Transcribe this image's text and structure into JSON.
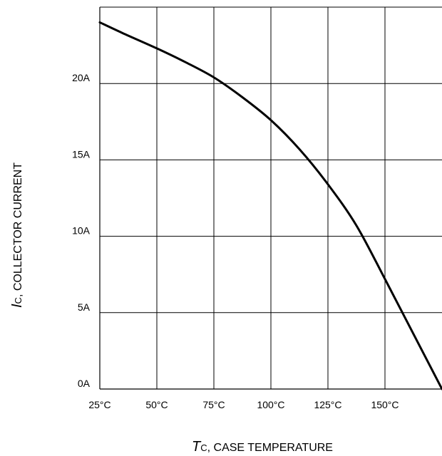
{
  "chart_data": {
    "type": "line",
    "title": "",
    "xlabel": {
      "symbol": "T",
      "subscript": "C",
      "text": ", CASE TEMPERATURE"
    },
    "ylabel": {
      "symbol": "I",
      "subscript": "C",
      "text": ", COLLECTOR CURRENT"
    },
    "xlim": [
      25,
      175
    ],
    "ylim": [
      0,
      25
    ],
    "grid": true,
    "x_ticks": [
      {
        "value": 25,
        "label": "25°C"
      },
      {
        "value": 50,
        "label": "50°C"
      },
      {
        "value": 75,
        "label": "75°C"
      },
      {
        "value": 100,
        "label": "100°C"
      },
      {
        "value": 125,
        "label": "125°C"
      },
      {
        "value": 150,
        "label": "150°C"
      }
    ],
    "y_ticks": [
      {
        "value": 0,
        "label": "0A"
      },
      {
        "value": 5,
        "label": "5A"
      },
      {
        "value": 10,
        "label": "10A"
      },
      {
        "value": 15,
        "label": "15A"
      },
      {
        "value": 20,
        "label": "20A"
      }
    ],
    "series": [
      {
        "x": [
          25,
          35,
          50,
          62.5,
          75,
          87.5,
          100,
          112.5,
          125,
          137.5,
          150,
          162.5,
          175
        ],
        "y": [
          24.0,
          23.3,
          22.3,
          21.4,
          20.4,
          19.1,
          17.6,
          15.7,
          13.4,
          10.7,
          7.2,
          3.6,
          0.0
        ],
        "color": "#000000"
      }
    ]
  }
}
